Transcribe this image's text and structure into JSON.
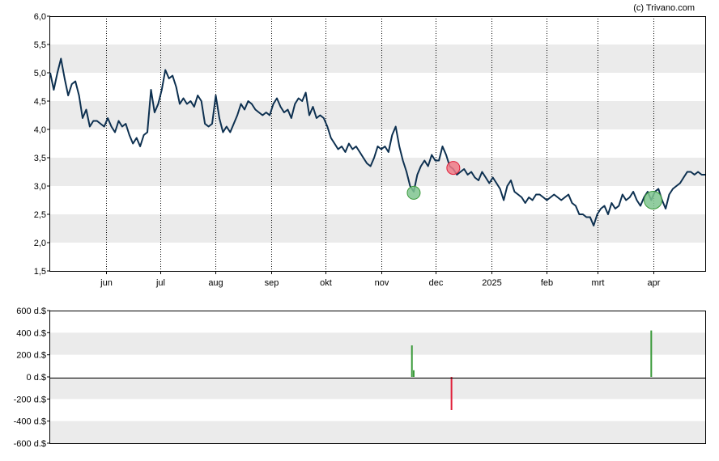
{
  "copyright": "(c) Trivano.com",
  "colors": {
    "price_line": "#0d3050",
    "band": "#ebebeb",
    "buy": "#3a9a3a",
    "sell": "#e0203a",
    "buy_marker": "#7fc48f",
    "sell_marker": "#f07a86",
    "grid": "#000000"
  },
  "chart_data": [
    {
      "type": "line",
      "title": "",
      "xlabel": "",
      "ylabel": "",
      "ylim": [
        1.5,
        6.0
      ],
      "xlim": [
        "2024-05-01",
        "2025-04-30"
      ],
      "y_ticks": [
        "6,0",
        "5,5",
        "5,0",
        "4,5",
        "4,0",
        "3,5",
        "3,0",
        "2,5",
        "2,0",
        "1,5"
      ],
      "y_tick_values": [
        6.0,
        5.5,
        5.0,
        4.5,
        4.0,
        3.5,
        3.0,
        2.5,
        2.0,
        1.5
      ],
      "x_ticks": [
        {
          "label": "jun",
          "date": "2024-06-01"
        },
        {
          "label": "jul",
          "date": "2024-07-01"
        },
        {
          "label": "aug",
          "date": "2024-08-01"
        },
        {
          "label": "sep",
          "date": "2024-09-01"
        },
        {
          "label": "okt",
          "date": "2024-10-01"
        },
        {
          "label": "nov",
          "date": "2024-11-01"
        },
        {
          "label": "dec",
          "date": "2024-12-01"
        },
        {
          "label": "2025",
          "date": "2025-01-01"
        },
        {
          "label": "feb",
          "date": "2025-02-01"
        },
        {
          "label": "mrt",
          "date": "2025-03-01"
        },
        {
          "label": "apr",
          "date": "2025-04-01"
        }
      ],
      "grid": "vertical dotted at month boundaries, alternating horizontal bands",
      "series": [
        {
          "points": [
            [
              "2024-05-01",
              5.0
            ],
            [
              "2024-05-03",
              4.7
            ],
            [
              "2024-05-05",
              5.0
            ],
            [
              "2024-05-07",
              5.25
            ],
            [
              "2024-05-09",
              4.9
            ],
            [
              "2024-05-11",
              4.6
            ],
            [
              "2024-05-13",
              4.8
            ],
            [
              "2024-05-15",
              4.85
            ],
            [
              "2024-05-17",
              4.6
            ],
            [
              "2024-05-19",
              4.2
            ],
            [
              "2024-05-21",
              4.35
            ],
            [
              "2024-05-23",
              4.05
            ],
            [
              "2024-05-25",
              4.15
            ],
            [
              "2024-05-27",
              4.15
            ],
            [
              "2024-05-29",
              4.1
            ],
            [
              "2024-05-31",
              4.05
            ],
            [
              "2024-06-02",
              4.2
            ],
            [
              "2024-06-04",
              4.05
            ],
            [
              "2024-06-06",
              3.95
            ],
            [
              "2024-06-08",
              4.15
            ],
            [
              "2024-06-10",
              4.05
            ],
            [
              "2024-06-12",
              4.1
            ],
            [
              "2024-06-14",
              3.9
            ],
            [
              "2024-06-16",
              3.75
            ],
            [
              "2024-06-18",
              3.85
            ],
            [
              "2024-06-20",
              3.7
            ],
            [
              "2024-06-22",
              3.9
            ],
            [
              "2024-06-24",
              3.95
            ],
            [
              "2024-06-26",
              4.7
            ],
            [
              "2024-06-28",
              4.3
            ],
            [
              "2024-06-30",
              4.45
            ],
            [
              "2024-07-02",
              4.7
            ],
            [
              "2024-07-04",
              5.05
            ],
            [
              "2024-07-06",
              4.9
            ],
            [
              "2024-07-08",
              4.95
            ],
            [
              "2024-07-10",
              4.75
            ],
            [
              "2024-07-12",
              4.45
            ],
            [
              "2024-07-14",
              4.55
            ],
            [
              "2024-07-16",
              4.45
            ],
            [
              "2024-07-18",
              4.5
            ],
            [
              "2024-07-20",
              4.4
            ],
            [
              "2024-07-22",
              4.6
            ],
            [
              "2024-07-24",
              4.5
            ],
            [
              "2024-07-26",
              4.1
            ],
            [
              "2024-07-28",
              4.05
            ],
            [
              "2024-07-30",
              4.1
            ],
            [
              "2024-08-01",
              4.6
            ],
            [
              "2024-08-03",
              4.2
            ],
            [
              "2024-08-05",
              3.95
            ],
            [
              "2024-08-07",
              4.05
            ],
            [
              "2024-08-09",
              3.95
            ],
            [
              "2024-08-11",
              4.1
            ],
            [
              "2024-08-13",
              4.25
            ],
            [
              "2024-08-15",
              4.45
            ],
            [
              "2024-08-17",
              4.35
            ],
            [
              "2024-08-19",
              4.5
            ],
            [
              "2024-08-21",
              4.45
            ],
            [
              "2024-08-23",
              4.35
            ],
            [
              "2024-08-25",
              4.3
            ],
            [
              "2024-08-27",
              4.25
            ],
            [
              "2024-08-29",
              4.3
            ],
            [
              "2024-08-31",
              4.25
            ],
            [
              "2024-09-02",
              4.45
            ],
            [
              "2024-09-04",
              4.55
            ],
            [
              "2024-09-06",
              4.4
            ],
            [
              "2024-09-08",
              4.3
            ],
            [
              "2024-09-10",
              4.35
            ],
            [
              "2024-09-12",
              4.2
            ],
            [
              "2024-09-14",
              4.45
            ],
            [
              "2024-09-16",
              4.55
            ],
            [
              "2024-09-18",
              4.5
            ],
            [
              "2024-09-20",
              4.65
            ],
            [
              "2024-09-22",
              4.25
            ],
            [
              "2024-09-24",
              4.4
            ],
            [
              "2024-09-26",
              4.2
            ],
            [
              "2024-09-28",
              4.25
            ],
            [
              "2024-09-30",
              4.2
            ],
            [
              "2024-10-02",
              4.05
            ],
            [
              "2024-10-04",
              3.85
            ],
            [
              "2024-10-06",
              3.75
            ],
            [
              "2024-10-08",
              3.65
            ],
            [
              "2024-10-10",
              3.7
            ],
            [
              "2024-10-12",
              3.6
            ],
            [
              "2024-10-14",
              3.75
            ],
            [
              "2024-10-16",
              3.65
            ],
            [
              "2024-10-18",
              3.7
            ],
            [
              "2024-10-20",
              3.6
            ],
            [
              "2024-10-22",
              3.5
            ],
            [
              "2024-10-24",
              3.4
            ],
            [
              "2024-10-26",
              3.35
            ],
            [
              "2024-10-28",
              3.5
            ],
            [
              "2024-10-30",
              3.7
            ],
            [
              "2024-11-01",
              3.65
            ],
            [
              "2024-11-03",
              3.7
            ],
            [
              "2024-11-05",
              3.6
            ],
            [
              "2024-11-07",
              3.9
            ],
            [
              "2024-11-09",
              4.05
            ],
            [
              "2024-11-11",
              3.7
            ],
            [
              "2024-11-13",
              3.45
            ],
            [
              "2024-11-15",
              3.25
            ],
            [
              "2024-11-17",
              3.0
            ],
            [
              "2024-11-19",
              2.9
            ],
            [
              "2024-11-21",
              3.2
            ],
            [
              "2024-11-23",
              3.35
            ],
            [
              "2024-11-25",
              3.45
            ],
            [
              "2024-11-27",
              3.35
            ],
            [
              "2024-11-29",
              3.55
            ],
            [
              "2024-12-01",
              3.45
            ],
            [
              "2024-12-03",
              3.45
            ],
            [
              "2024-12-05",
              3.7
            ],
            [
              "2024-12-07",
              3.55
            ],
            [
              "2024-12-09",
              3.35
            ],
            [
              "2024-12-11",
              3.3
            ],
            [
              "2024-12-13",
              3.2
            ],
            [
              "2024-12-15",
              3.25
            ],
            [
              "2024-12-17",
              3.3
            ],
            [
              "2024-12-19",
              3.2
            ],
            [
              "2024-12-21",
              3.25
            ],
            [
              "2024-12-23",
              3.15
            ],
            [
              "2024-12-25",
              3.1
            ],
            [
              "2024-12-27",
              3.25
            ],
            [
              "2024-12-29",
              3.15
            ],
            [
              "2024-12-31",
              3.05
            ],
            [
              "2025-01-02",
              3.15
            ],
            [
              "2025-01-04",
              3.05
            ],
            [
              "2025-01-06",
              2.95
            ],
            [
              "2025-01-08",
              2.75
            ],
            [
              "2025-01-10",
              3.0
            ],
            [
              "2025-01-12",
              3.1
            ],
            [
              "2025-01-14",
              2.9
            ],
            [
              "2025-01-16",
              2.85
            ],
            [
              "2025-01-18",
              2.8
            ],
            [
              "2025-01-20",
              2.7
            ],
            [
              "2025-01-22",
              2.8
            ],
            [
              "2025-01-24",
              2.75
            ],
            [
              "2025-01-26",
              2.85
            ],
            [
              "2025-01-28",
              2.85
            ],
            [
              "2025-01-30",
              2.8
            ],
            [
              "2025-02-01",
              2.75
            ],
            [
              "2025-02-03",
              2.8
            ],
            [
              "2025-02-05",
              2.85
            ],
            [
              "2025-02-07",
              2.8
            ],
            [
              "2025-02-09",
              2.75
            ],
            [
              "2025-02-11",
              2.8
            ],
            [
              "2025-02-13",
              2.85
            ],
            [
              "2025-02-15",
              2.7
            ],
            [
              "2025-02-17",
              2.65
            ],
            [
              "2025-02-19",
              2.5
            ],
            [
              "2025-02-21",
              2.5
            ],
            [
              "2025-02-23",
              2.45
            ],
            [
              "2025-02-25",
              2.45
            ],
            [
              "2025-02-27",
              2.3
            ],
            [
              "2025-03-01",
              2.5
            ],
            [
              "2025-03-03",
              2.6
            ],
            [
              "2025-03-05",
              2.65
            ],
            [
              "2025-03-07",
              2.5
            ],
            [
              "2025-03-09",
              2.7
            ],
            [
              "2025-03-11",
              2.6
            ],
            [
              "2025-03-13",
              2.65
            ],
            [
              "2025-03-15",
              2.85
            ],
            [
              "2025-03-17",
              2.75
            ],
            [
              "2025-03-19",
              2.8
            ],
            [
              "2025-03-21",
              2.9
            ],
            [
              "2025-03-23",
              2.75
            ],
            [
              "2025-03-25",
              2.65
            ],
            [
              "2025-03-27",
              2.8
            ],
            [
              "2025-03-29",
              2.9
            ],
            [
              "2025-03-31",
              2.75
            ],
            [
              "2025-04-02",
              2.9
            ],
            [
              "2025-04-04",
              2.95
            ],
            [
              "2025-04-06",
              2.75
            ],
            [
              "2025-04-08",
              2.6
            ],
            [
              "2025-04-10",
              2.85
            ],
            [
              "2025-04-12",
              2.95
            ],
            [
              "2025-04-14",
              3.0
            ],
            [
              "2025-04-16",
              3.05
            ],
            [
              "2025-04-18",
              3.15
            ],
            [
              "2025-04-20",
              3.25
            ],
            [
              "2025-04-22",
              3.25
            ],
            [
              "2025-04-24",
              3.2
            ],
            [
              "2025-04-26",
              3.25
            ],
            [
              "2025-04-28",
              3.2
            ],
            [
              "2025-04-30",
              3.2
            ]
          ]
        }
      ],
      "markers": [
        {
          "kind": "buy",
          "date": "2024-11-19",
          "value": 2.88,
          "size": "small"
        },
        {
          "kind": "sell",
          "date": "2024-12-11",
          "value": 3.32,
          "size": "small"
        },
        {
          "kind": "buy",
          "date": "2025-04-01",
          "value": 2.75,
          "size": "large"
        }
      ]
    },
    {
      "type": "bar",
      "title": "",
      "xlabel": "",
      "ylabel": "",
      "ylim": [
        -600,
        600
      ],
      "y_ticks": [
        "600 d.$",
        "400 d.$",
        "200 d.$",
        "0 d.$",
        "-200 d.$",
        "-400 d.$",
        "-600 d.$"
      ],
      "y_tick_values": [
        600,
        400,
        200,
        0,
        -200,
        -400,
        -600
      ],
      "grid": "alternating horizontal bands, zero line",
      "bars": [
        {
          "date": "2024-11-18",
          "value": 285,
          "kind": "buy"
        },
        {
          "date": "2024-11-19",
          "value": 60,
          "kind": "buy"
        },
        {
          "date": "2024-12-10",
          "value": -300,
          "kind": "sell"
        },
        {
          "date": "2025-03-31",
          "value": 420,
          "kind": "buy"
        }
      ]
    }
  ]
}
